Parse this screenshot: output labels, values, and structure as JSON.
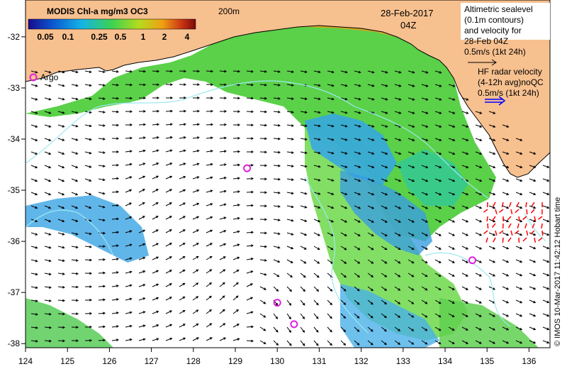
{
  "title": {
    "colorbar_title": "MODIS Chl-a mg/m3 OC3",
    "colorbar_ticks": [
      "0.05",
      "0.1",
      "0.25",
      "0.5",
      "1",
      "2",
      "4"
    ],
    "colorbar_colors": [
      "#1a0a8c",
      "#0a5ad2",
      "#14b4e6",
      "#3cd250",
      "#b4dc1e",
      "#f0a014",
      "#c83214",
      "#7a0a0a"
    ]
  },
  "labels": {
    "isobath": "200m",
    "date": "28-Feb-2017",
    "time": "04Z",
    "argo": "Argo",
    "altimetry": [
      "Altimetric sealevel",
      "(0.1m contours)",
      "and velocity for",
      "28-Feb 04Z",
      "0.5m/s (1kt 24h)"
    ],
    "hf_radar": [
      "HF radar velocity",
      "(4-12h avg)noQC",
      "0.5m/s (1kt 24h)"
    ],
    "credit": "© IMOS 10-Mar-2017 11:42:12 Hobart time"
  },
  "axes": {
    "x_ticks": [
      "124",
      "125",
      "126",
      "127",
      "128",
      "129",
      "130",
      "131",
      "132",
      "133",
      "134",
      "135",
      "136"
    ],
    "y_ticks": [
      "-32",
      "-33",
      "-34",
      "-35",
      "-36",
      "-37",
      "-38"
    ]
  },
  "argo_floats": [
    {
      "lon": 129.28,
      "lat": -34.57
    },
    {
      "lon": 130.0,
      "lat": -37.2
    },
    {
      "lon": 130.4,
      "lat": -37.62
    },
    {
      "lon": 134.65,
      "lat": -36.37
    }
  ],
  "colors": {
    "land": "#f7c08f",
    "coast_line": "#000000",
    "contour": "#9be8f0",
    "argo": "#e020e0",
    "radar_arrow": "#ff0000",
    "legend_arrow": "#0000ff",
    "chl_green": "#4dcc3a",
    "chl_blue": "#35a6e8",
    "chl_teal": "#2ec8a0"
  }
}
